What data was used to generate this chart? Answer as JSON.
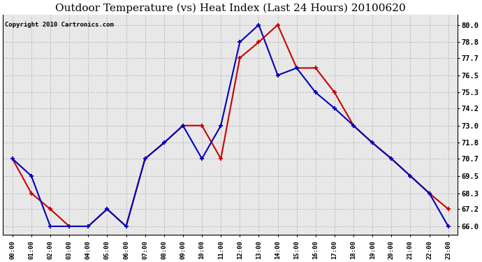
{
  "title": "Outdoor Temperature (vs) Heat Index (Last 24 Hours) 20100620",
  "copyright": "Copyright 2010 Cartronics.com",
  "hours": [
    "00:00",
    "01:00",
    "02:00",
    "03:00",
    "04:00",
    "05:00",
    "06:00",
    "07:00",
    "08:00",
    "09:00",
    "10:00",
    "11:00",
    "12:00",
    "13:00",
    "14:00",
    "15:00",
    "16:00",
    "17:00",
    "18:00",
    "19:00",
    "20:00",
    "21:00",
    "22:00",
    "23:00"
  ],
  "temp": [
    70.7,
    69.5,
    66.0,
    66.0,
    66.0,
    67.2,
    66.0,
    70.7,
    71.8,
    73.0,
    70.7,
    73.0,
    78.8,
    80.0,
    76.5,
    77.0,
    75.3,
    74.2,
    73.0,
    71.8,
    70.7,
    69.5,
    68.3,
    66.0
  ],
  "heat_index": [
    70.7,
    68.3,
    67.2,
    66.0,
    66.0,
    67.2,
    66.0,
    70.7,
    71.8,
    73.0,
    73.0,
    70.7,
    77.7,
    78.8,
    80.0,
    77.0,
    77.0,
    75.3,
    73.0,
    71.8,
    70.7,
    69.5,
    68.3,
    67.2
  ],
  "temp_color": "#0000bb",
  "heat_color": "#cc0000",
  "ylim_min": 65.4,
  "ylim_max": 80.7,
  "yticks": [
    66.0,
    67.2,
    68.3,
    69.5,
    70.7,
    71.8,
    73.0,
    74.2,
    75.3,
    76.5,
    77.7,
    78.8,
    80.0
  ],
  "background_color": "#ffffff",
  "plot_bg_color": "#e8e8e8",
  "grid_color": "#bbbbbb",
  "title_fontsize": 11,
  "copyright_fontsize": 6.5
}
